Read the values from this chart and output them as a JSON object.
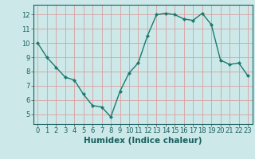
{
  "x": [
    0,
    1,
    2,
    3,
    4,
    5,
    6,
    7,
    8,
    9,
    10,
    11,
    12,
    13,
    14,
    15,
    16,
    17,
    18,
    19,
    20,
    21,
    22,
    23
  ],
  "y": [
    10.0,
    9.0,
    8.3,
    7.6,
    7.4,
    6.4,
    5.6,
    5.5,
    4.8,
    6.6,
    7.9,
    8.6,
    10.5,
    12.0,
    12.1,
    12.0,
    11.7,
    11.6,
    12.1,
    11.3,
    8.8,
    8.5,
    8.6,
    7.7
  ],
  "xlabel": "Humidex (Indice chaleur)",
  "xlim": [
    -0.5,
    23.5
  ],
  "ylim": [
    4.3,
    12.7
  ],
  "yticks": [
    5,
    6,
    7,
    8,
    9,
    10,
    11,
    12
  ],
  "xticks": [
    0,
    1,
    2,
    3,
    4,
    5,
    6,
    7,
    8,
    9,
    10,
    11,
    12,
    13,
    14,
    15,
    16,
    17,
    18,
    19,
    20,
    21,
    22,
    23
  ],
  "line_color": "#1a7a6e",
  "marker_color": "#1a7a6e",
  "bg_color": "#cce8e8",
  "grid_color": "#daa0a0",
  "marker": "D",
  "marker_size": 2.0,
  "line_width": 1.0,
  "tick_fontsize": 6.0,
  "xlabel_fontsize": 7.5
}
